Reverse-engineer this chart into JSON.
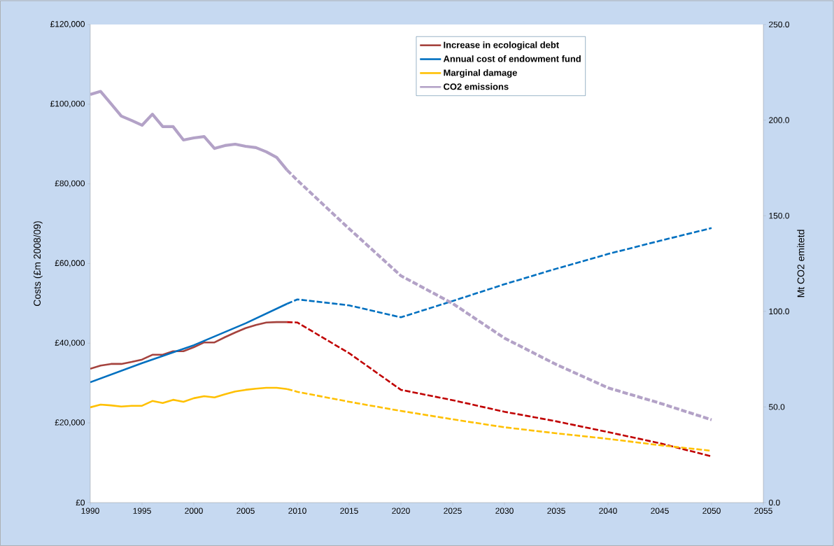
{
  "chart_data": {
    "type": "line",
    "xlabel": null,
    "ylabel": "Costs (£m 2008/09)",
    "y2label": "Mt CO2 emitetd",
    "xlim": [
      1990,
      2055
    ],
    "xticks": [
      1990,
      1995,
      2000,
      2005,
      2010,
      2015,
      2020,
      2025,
      2030,
      2035,
      2040,
      2045,
      2050,
      2055
    ],
    "ylim": [
      0,
      120000
    ],
    "yticks": [
      {
        "value": 0,
        "label": "£0"
      },
      {
        "value": 20000,
        "label": "£20,000"
      },
      {
        "value": 40000,
        "label": "£40,000"
      },
      {
        "value": 60000,
        "label": "£60,000"
      },
      {
        "value": 80000,
        "label": "£80,000"
      },
      {
        "value": 100000,
        "label": "£100,000"
      },
      {
        "value": 120000,
        "label": "£120,000"
      }
    ],
    "y2lim": [
      0,
      250
    ],
    "y2ticks": [
      {
        "value": 0,
        "label": "0.0"
      },
      {
        "value": 50,
        "label": "50.0"
      },
      {
        "value": 100,
        "label": "100.0"
      },
      {
        "value": 150,
        "label": "150.0"
      },
      {
        "value": 200,
        "label": "200.0"
      },
      {
        "value": 250,
        "label": "250.0"
      }
    ],
    "legend": "top",
    "grid": false,
    "series": [
      {
        "name": "Increase in ecological debt",
        "color": "#a5433e",
        "line_style": "solid",
        "x": [
          1990,
          1991,
          1992,
          1993,
          1994,
          1995,
          1996,
          1997,
          1998,
          1999,
          2000,
          2001,
          2002,
          2003,
          2004,
          2005,
          2006,
          2007,
          2008,
          2009
        ],
        "values": [
          33600,
          34400,
          34800,
          34800,
          35300,
          35900,
          37100,
          37100,
          38000,
          38000,
          39000,
          40200,
          40200,
          41500,
          42700,
          43800,
          44600,
          45200,
          45300,
          45300
        ]
      },
      {
        "color": "#c00000",
        "line_style": "dashed",
        "x": [
          2009,
          2010,
          2015,
          2020,
          2025,
          2030,
          2035,
          2040,
          2045,
          2050
        ],
        "values": [
          45300,
          45200,
          37500,
          28300,
          25700,
          22800,
          20400,
          17700,
          14900,
          11600
        ]
      },
      {
        "name": "Annual cost of endowment fund",
        "color": "#0070c0",
        "line_style": "solid",
        "x": [
          1990,
          1995,
          2000,
          2005,
          2009
        ],
        "values": [
          30200,
          35000,
          39500,
          45000,
          49900
        ]
      },
      {
        "color": "#0070c0",
        "line_style": "dashed",
        "x": [
          2009,
          2010,
          2015,
          2020,
          2025,
          2030,
          2035,
          2040,
          2045,
          2050
        ],
        "values": [
          49900,
          51000,
          49500,
          46500,
          50600,
          54800,
          58700,
          62400,
          65700,
          68900
        ]
      },
      {
        "name": "Marginal damage",
        "color": "#ffc000",
        "line_style": "solid",
        "x": [
          1990,
          1991,
          1992,
          1993,
          1994,
          1995,
          1996,
          1997,
          1998,
          1999,
          2000,
          2001,
          2002,
          2003,
          2004,
          2005,
          2006,
          2007,
          2008,
          2009
        ],
        "values": [
          23900,
          24600,
          24400,
          24100,
          24300,
          24300,
          25500,
          25000,
          25800,
          25300,
          26200,
          26700,
          26400,
          27200,
          27900,
          28300,
          28600,
          28800,
          28800,
          28500
        ]
      },
      {
        "color": "#ffc000",
        "line_style": "dashed",
        "x": [
          2009,
          2010,
          2015,
          2020,
          2025,
          2030,
          2035,
          2040,
          2045,
          2050
        ],
        "values": [
          28500,
          27800,
          25300,
          23000,
          20900,
          18900,
          17400,
          16000,
          14400,
          13000
        ]
      },
      {
        "name": "CO2 emissions",
        "color": "#b3a2c7",
        "line_style": "solid",
        "axis": "y2",
        "x": [
          1990,
          1991,
          1992,
          1993,
          1994,
          1995,
          1996,
          1997,
          1998,
          1999,
          2000,
          2001,
          2002,
          2003,
          2004,
          2005,
          2006,
          2007,
          2008,
          2009
        ],
        "values": [
          213.4,
          215.0,
          208.6,
          202.1,
          199.8,
          197.3,
          203.1,
          196.6,
          196.6,
          189.6,
          190.7,
          191.4,
          185.2,
          186.7,
          187.4,
          186.3,
          185.6,
          183.4,
          180.5,
          173.9
        ]
      },
      {
        "color": "#b3a2c7",
        "line_style": "dashed",
        "axis": "y2",
        "x": [
          2009,
          2010,
          2015,
          2020,
          2025,
          2030,
          2035,
          2040,
          2045,
          2050
        ],
        "values": [
          173.9,
          168.5,
          143.2,
          118.6,
          104.1,
          86.0,
          72.2,
          60.0,
          52.0,
          43.3
        ]
      }
    ]
  }
}
